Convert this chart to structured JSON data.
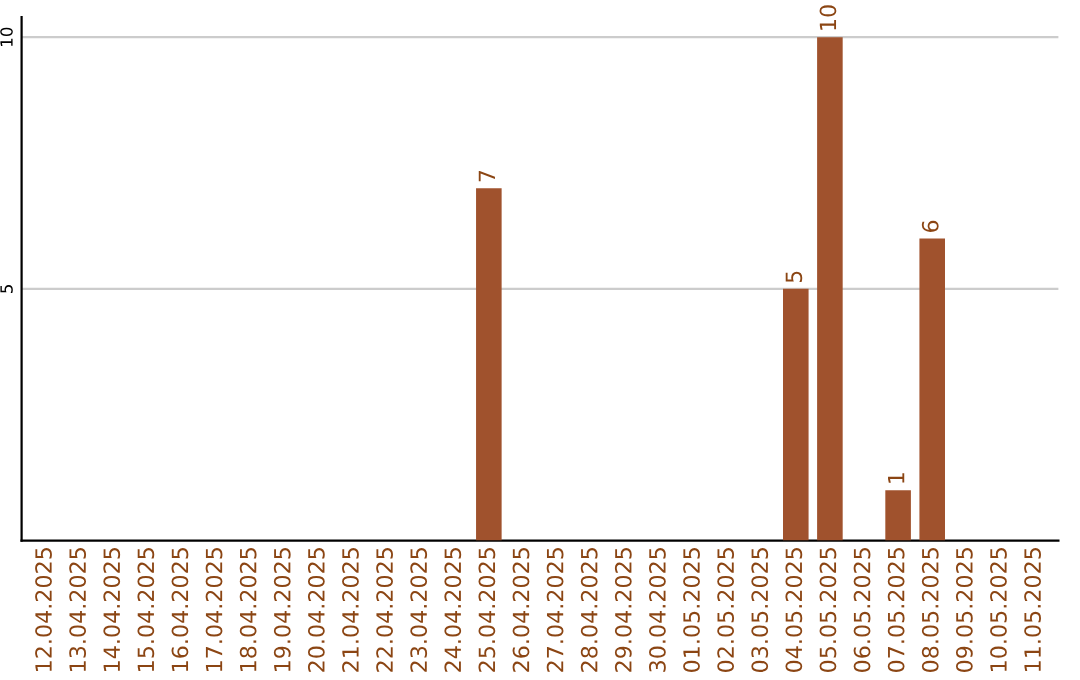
{
  "chart_data": {
    "type": "bar",
    "categories": [
      "12.04.2025",
      "13.04.2025",
      "14.04.2025",
      "15.04.2025",
      "16.04.2025",
      "17.04.2025",
      "18.04.2025",
      "19.04.2025",
      "20.04.2025",
      "21.04.2025",
      "22.04.2025",
      "23.04.2025",
      "24.04.2025",
      "25.04.2025",
      "26.04.2025",
      "27.04.2025",
      "28.04.2025",
      "29.04.2025",
      "30.04.2025",
      "01.05.2025",
      "02.05.2025",
      "03.05.2025",
      "04.05.2025",
      "05.05.2025",
      "06.05.2025",
      "07.05.2025",
      "08.05.2025",
      "09.05.2025",
      "10.05.2025",
      "11.05.2025"
    ],
    "values": [
      0,
      0,
      0,
      0,
      0,
      0,
      0,
      0,
      0,
      0,
      0,
      0,
      0,
      7,
      0,
      0,
      0,
      0,
      0,
      0,
      0,
      0,
      5,
      10,
      0,
      1,
      6,
      0,
      0,
      0
    ],
    "value_labels": [
      null,
      null,
      null,
      null,
      null,
      null,
      null,
      null,
      null,
      null,
      null,
      null,
      null,
      "7",
      null,
      null,
      null,
      null,
      null,
      null,
      null,
      null,
      "5",
      "10",
      null,
      "1",
      "6",
      null,
      null,
      null
    ],
    "color": "#a0522d",
    "ylim": [
      0,
      10.4
    ],
    "yticks": [
      5,
      10
    ],
    "grid": "y"
  }
}
